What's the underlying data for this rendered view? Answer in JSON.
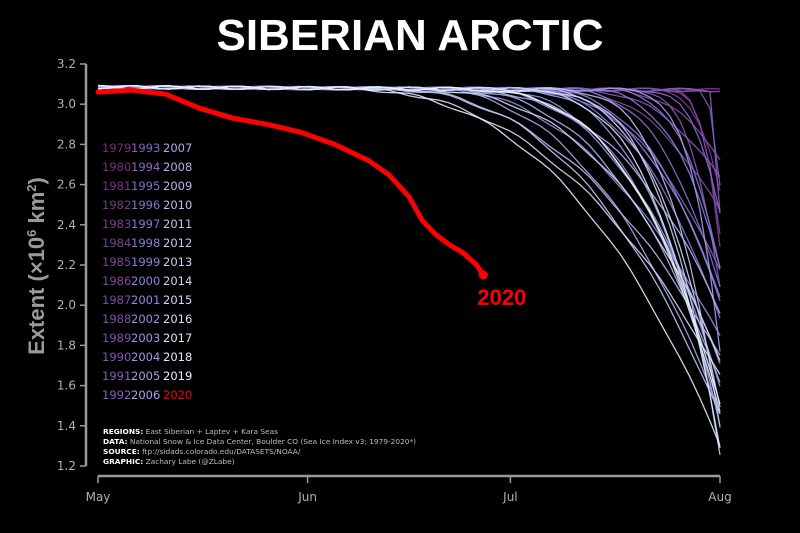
{
  "title": "SIBERIAN ARCTIC",
  "chart_data": {
    "type": "line",
    "title": "SIBERIAN ARCTIC",
    "ylabel": "Extent (×10⁶ km²)",
    "ylabel_parts": {
      "pre": "Extent (×10",
      "sup1": "6",
      "mid": " km",
      "sup2": "2",
      "post": ")"
    },
    "ylim": [
      1.2,
      3.2
    ],
    "yticks": [
      "1.2",
      "1.4",
      "1.6",
      "1.8",
      "2.0",
      "2.2",
      "2.4",
      "2.6",
      "2.8",
      "3.0",
      "3.2"
    ],
    "xticks": [
      "May",
      "Jun",
      "Jul",
      "Aug"
    ],
    "x_tick_days": [
      0,
      31,
      61,
      92
    ],
    "grid": false,
    "highlight": {
      "name": "2020",
      "color": "#ff0000",
      "x_days": [
        0,
        5,
        10,
        15,
        20,
        25,
        30,
        35,
        40,
        43,
        46,
        48,
        50,
        52,
        54,
        56,
        57
      ],
      "values": [
        3.06,
        3.07,
        3.05,
        2.98,
        2.93,
        2.9,
        2.86,
        2.8,
        2.72,
        2.65,
        2.54,
        2.42,
        2.35,
        2.3,
        2.26,
        2.2,
        2.15
      ],
      "label": "2020"
    },
    "legend_years": [
      [
        "1979",
        "1993",
        "2007"
      ],
      [
        "1980",
        "1994",
        "2008"
      ],
      [
        "1981",
        "1995",
        "2009"
      ],
      [
        "1982",
        "1996",
        "2010"
      ],
      [
        "1983",
        "1997",
        "2011"
      ],
      [
        "1984",
        "1998",
        "2012"
      ],
      [
        "1985",
        "1999",
        "2013"
      ],
      [
        "1986",
        "2000",
        "2014"
      ],
      [
        "1987",
        "2001",
        "2015"
      ],
      [
        "1988",
        "2002",
        "2016"
      ],
      [
        "1989",
        "2003",
        "2017"
      ],
      [
        "1990",
        "2004",
        "2018"
      ],
      [
        "1991",
        "2005",
        "2019"
      ],
      [
        "1992",
        "2006",
        "2020"
      ]
    ],
    "legend_placement": "left",
    "colors": {
      "early": "#7a2a7e",
      "mid": "#8a7fe0",
      "late": "#e6f6ff",
      "highlight": "#ff0000",
      "axis": "#9a9a9a"
    }
  },
  "credits": [
    {
      "key": "REGIONS:",
      "text": " East Siberian + Laptev + Kara Seas"
    },
    {
      "key": "DATA:",
      "text": " National Snow & Ice Data Center, Boulder CO (Sea Ice Index v3; 1979-2020*)"
    },
    {
      "key": "SOURCE:",
      "text": " ftp://sidads.colorado.edu/DATASETS/NOAA/"
    },
    {
      "key": "GRAPHIC:",
      "text": " Zachary Labe (@ZLabe)"
    }
  ]
}
